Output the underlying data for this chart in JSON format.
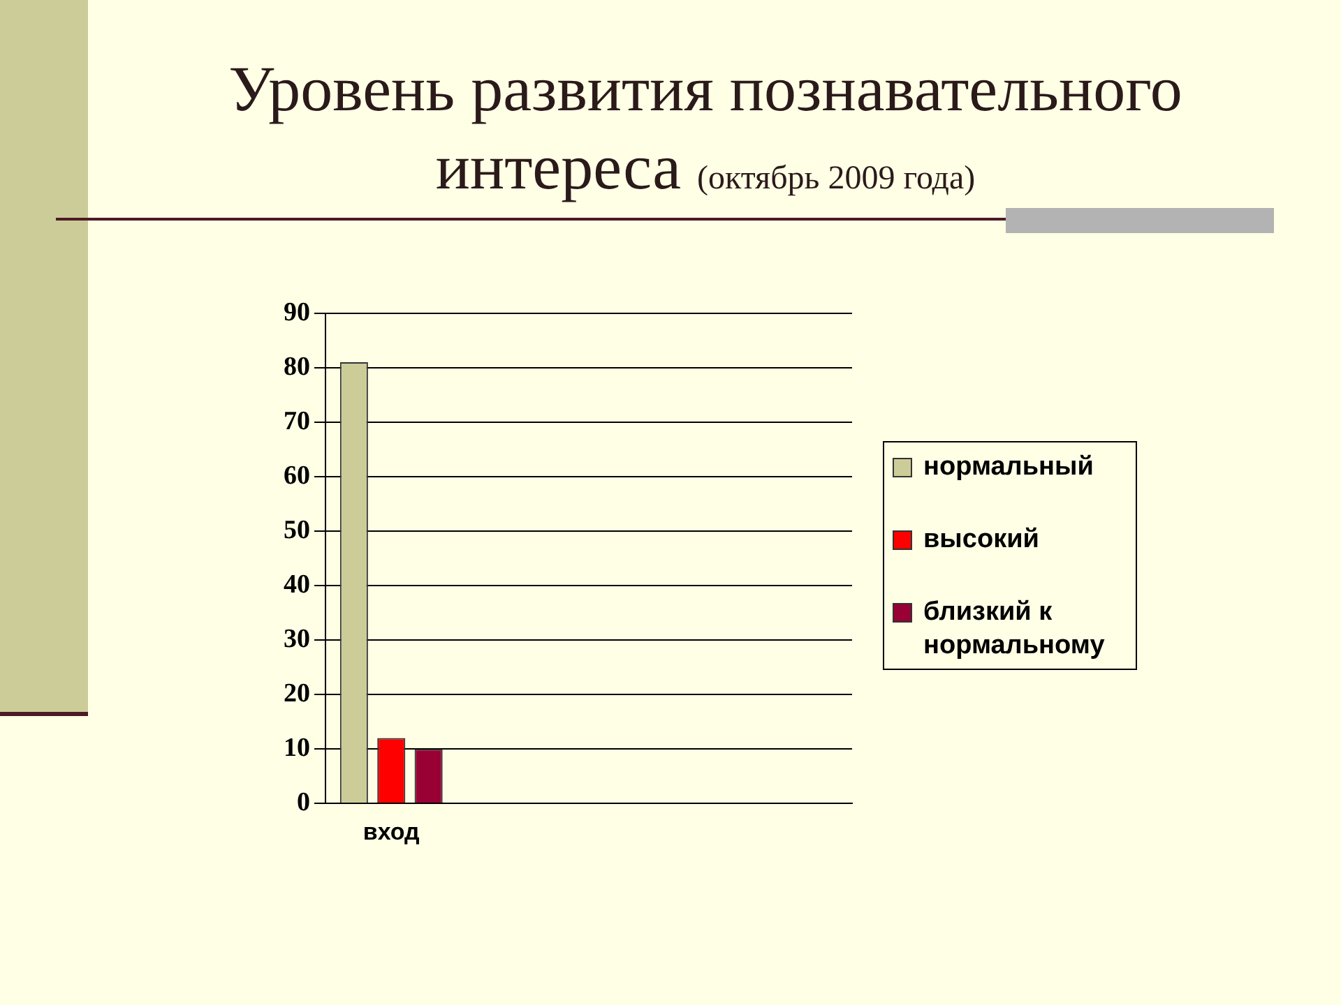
{
  "chart_data": {
    "type": "bar",
    "title": "Уровень развития познавательного интереса",
    "subtitle": "(октябрь 2009 года)",
    "categories": [
      "вход",
      null,
      null,
      null
    ],
    "series": [
      {
        "name": "нормальный",
        "color": "#cccc99",
        "values": [
          81,
          null,
          null,
          null
        ]
      },
      {
        "name": "высокий",
        "color": "#ff0000",
        "values": [
          12,
          null,
          null,
          null
        ]
      },
      {
        "name": "близкий к нормальному",
        "color": "#990033",
        "values": [
          10,
          null,
          null,
          null
        ]
      }
    ],
    "ylim": [
      0,
      90
    ],
    "yticks": [
      0,
      10,
      20,
      30,
      40,
      50,
      60,
      70,
      80,
      90
    ],
    "grid": "y",
    "legend": "right"
  }
}
